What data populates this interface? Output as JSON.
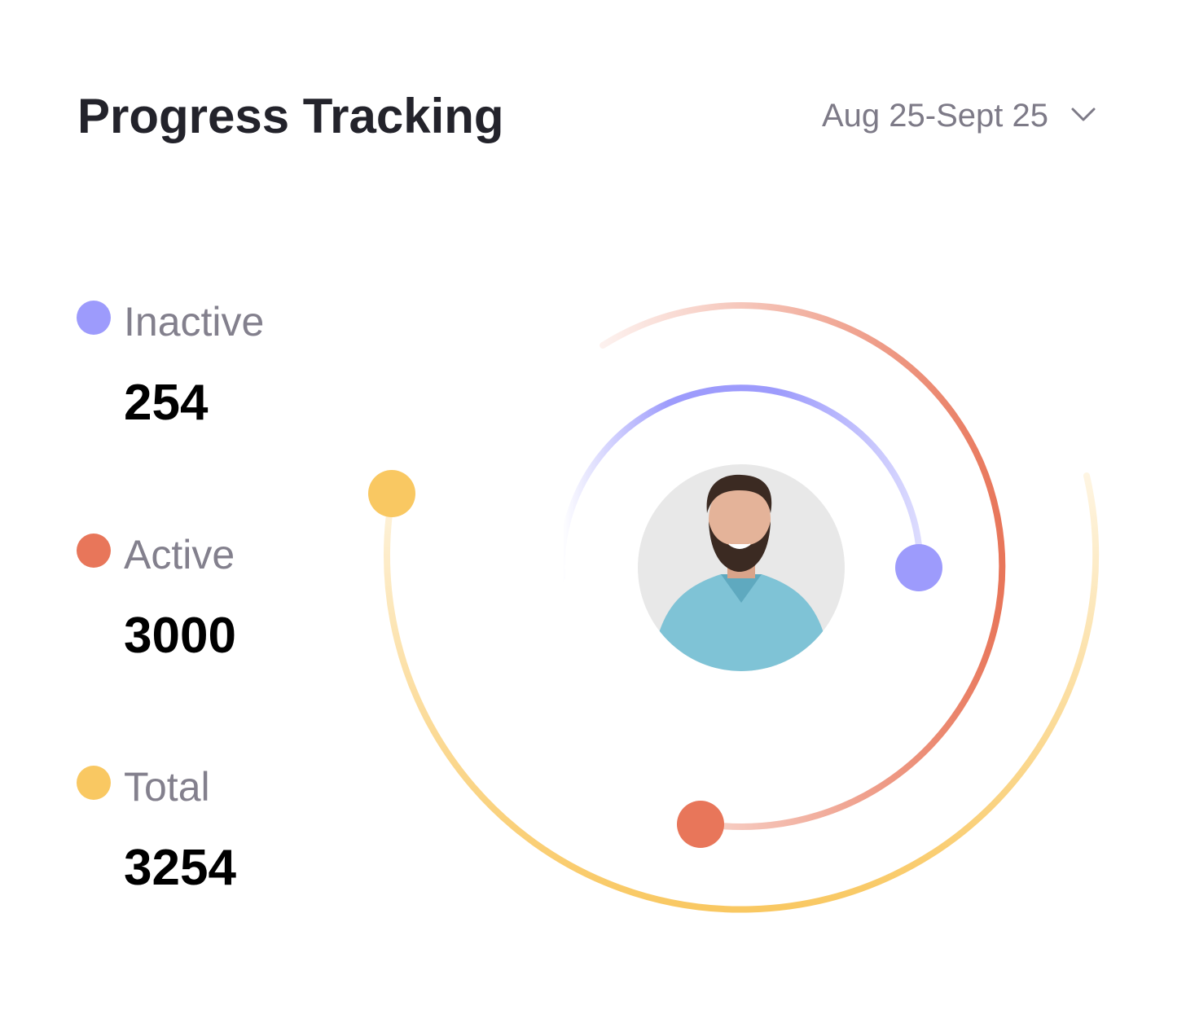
{
  "header": {
    "title": "Progress Tracking",
    "date_range": "Aug 25-Sept 25"
  },
  "legend": [
    {
      "label": "Inactive",
      "value": "254",
      "color": "#9d9bfc"
    },
    {
      "label": "Active",
      "value": "3000",
      "color": "#e8765a"
    },
    {
      "label": "Total",
      "value": "3254",
      "color": "#f9c862"
    }
  ]
}
